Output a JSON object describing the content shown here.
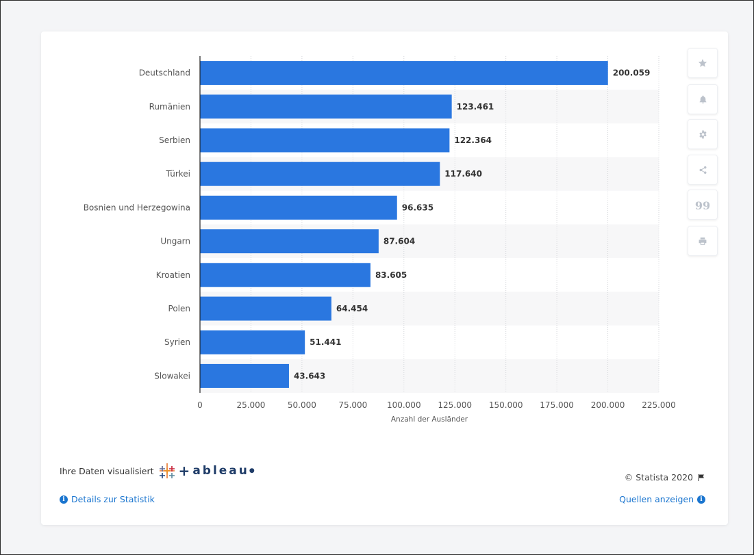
{
  "chart_data": {
    "type": "bar",
    "orientation": "horizontal",
    "categories": [
      "Deutschland",
      "Rumänien",
      "Serbien",
      "Türkei",
      "Bosnien und Herzegowina",
      "Ungarn",
      "Kroatien",
      "Polen",
      "Syrien",
      "Slowakei"
    ],
    "values": [
      200059,
      123461,
      122364,
      117640,
      96635,
      87604,
      83605,
      64454,
      51441,
      43643
    ],
    "value_labels": [
      "200.059",
      "123.461",
      "122.364",
      "117.640",
      "96.635",
      "87.604",
      "83.605",
      "64.454",
      "51.441",
      "43.643"
    ],
    "xlim": [
      0,
      225000
    ],
    "xticks": [
      0,
      25000,
      50000,
      75000,
      100000,
      125000,
      150000,
      175000,
      200000,
      225000
    ],
    "xtick_labels": [
      "0",
      "25.000",
      "50.000",
      "75.000",
      "100.000",
      "125.000",
      "150.000",
      "175.000",
      "200.000",
      "225.000"
    ],
    "xlabel": "Anzahl der Ausländer",
    "grid": true,
    "bar_color": "#2a77e0"
  },
  "sidebar": {
    "buttons": [
      {
        "icon": "star-icon"
      },
      {
        "icon": "bell-icon"
      },
      {
        "icon": "gear-icon"
      },
      {
        "icon": "share-icon"
      },
      {
        "icon": "quote-icon",
        "glyph": "99"
      },
      {
        "icon": "print-icon"
      }
    ]
  },
  "footer": {
    "tableau_prefix": "Ihre Daten visualisiert",
    "tableau_word": "ableau",
    "copyright": "© Statista 2020",
    "details_link": "Details zur Statistik",
    "sources_link": "Quellen anzeigen"
  },
  "colors": {
    "accent": "#1a75cf",
    "bar": "#2a77e0",
    "band": "#f7f7f8"
  }
}
